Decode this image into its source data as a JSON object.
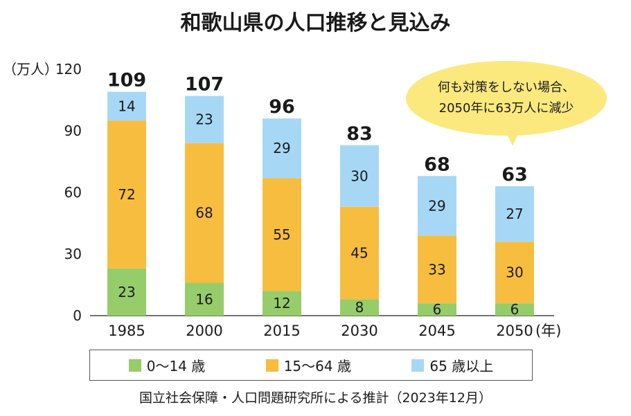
{
  "chart_data": {
    "type": "bar",
    "stacked": true,
    "title": "和歌山県の人口推移と見込み",
    "y_unit_label": "（万人）",
    "x_unit_label": "(年)",
    "ylim": [
      0,
      120
    ],
    "yticks": [
      "0",
      "30",
      "60",
      "90",
      "120"
    ],
    "categories": [
      "1985",
      "2000",
      "2015",
      "2030",
      "2045",
      "2050"
    ],
    "series": [
      {
        "name": "0～14 歳",
        "color": "#96cc6a",
        "values": [
          23,
          16,
          12,
          8,
          6,
          6
        ]
      },
      {
        "name": "15～64 歳",
        "color": "#f7bd3f",
        "values": [
          72,
          68,
          55,
          45,
          33,
          30
        ]
      },
      {
        "name": "65 歳以上",
        "color": "#a6d8f5",
        "values": [
          14,
          23,
          29,
          30,
          29,
          27
        ]
      }
    ],
    "totals": [
      109,
      107,
      96,
      83,
      68,
      63
    ],
    "legend_position": "bottom",
    "grid": false
  },
  "callout": {
    "line1": "何も対策をしない場合、",
    "line2": "2050年に63万人に減少",
    "color": "#fbe97e"
  },
  "source_note": "国立社会保障・人口問題研究所による推計（2023年12月）"
}
